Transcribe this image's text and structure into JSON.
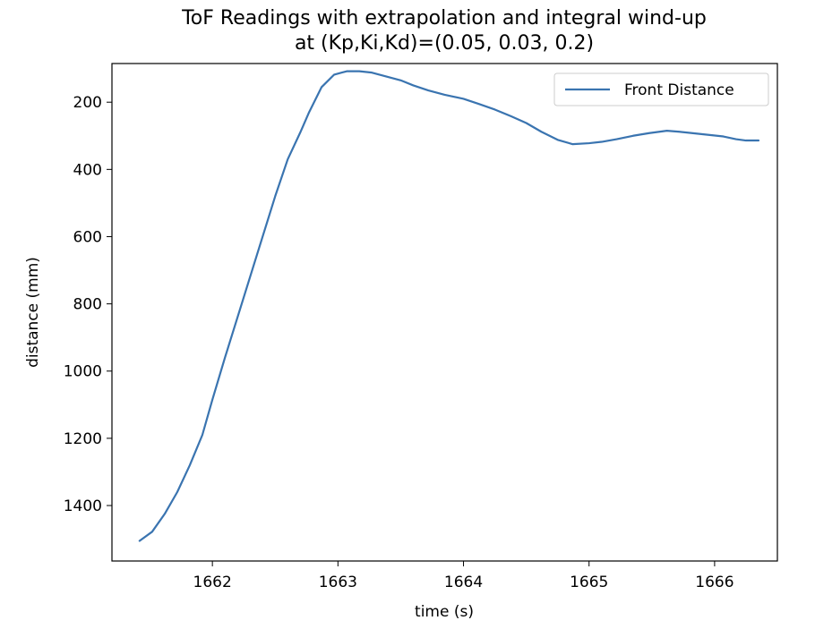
{
  "chart_data": {
    "type": "line",
    "title": "ToF Readings with extrapolation and integral wind-up",
    "subtitle": "at (Kp,Ki,Kd)=(0.05, 0.03, 0.2)",
    "xlabel": "time (s)",
    "ylabel": "distance (mm)",
    "xlim": [
      1661.2,
      1666.5
    ],
    "ylim": [
      1565,
      85
    ],
    "y_inverted": true,
    "x_ticks": [
      1662,
      1663,
      1664,
      1665,
      1666
    ],
    "y_ticks": [
      200,
      400,
      600,
      800,
      1000,
      1200,
      1400
    ],
    "x_tick_labels": [
      "1662",
      "1663",
      "1664",
      "1665",
      "1666"
    ],
    "y_tick_labels": [
      "200",
      "400",
      "600",
      "800",
      "1000",
      "1200",
      "1400"
    ],
    "grid": false,
    "legend_position": "upper right",
    "series": [
      {
        "name": "Front Distance",
        "color": "#3a74b0",
        "x": [
          1661.42,
          1661.52,
          1661.62,
          1661.72,
          1661.82,
          1661.92,
          1662.0,
          1662.1,
          1662.2,
          1662.3,
          1662.4,
          1662.5,
          1662.6,
          1662.7,
          1662.77,
          1662.87,
          1662.97,
          1663.07,
          1663.17,
          1663.27,
          1663.37,
          1663.5,
          1663.6,
          1663.72,
          1663.85,
          1664.0,
          1664.12,
          1664.25,
          1664.38,
          1664.5,
          1664.62,
          1664.75,
          1664.87,
          1665.0,
          1665.1,
          1665.22,
          1665.35,
          1665.48,
          1665.62,
          1665.72,
          1665.82,
          1665.97,
          1666.07,
          1666.17,
          1666.25,
          1666.35
        ],
        "values": [
          1505,
          1478,
          1425,
          1360,
          1280,
          1190,
          1085,
          960,
          840,
          720,
          600,
          480,
          370,
          290,
          230,
          155,
          118,
          108,
          108,
          112,
          122,
          135,
          150,
          165,
          178,
          190,
          205,
          222,
          242,
          262,
          288,
          312,
          325,
          322,
          318,
          310,
          300,
          292,
          285,
          288,
          292,
          298,
          302,
          310,
          314,
          314
        ]
      }
    ]
  }
}
